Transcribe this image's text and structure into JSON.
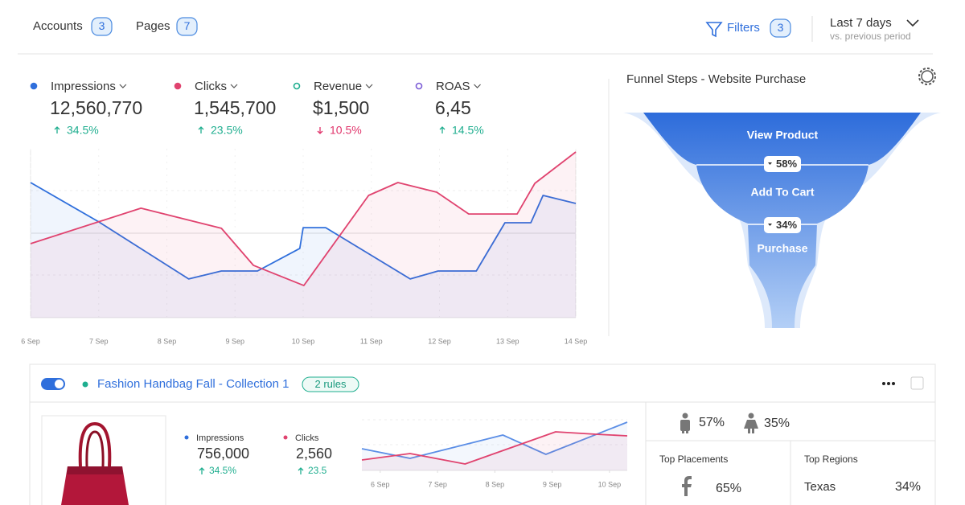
{
  "header": {
    "accounts": {
      "label": "Accounts",
      "count": "3"
    },
    "pages": {
      "label": "Pages",
      "count": "7"
    },
    "filters": {
      "label": "Filters",
      "count": "3"
    },
    "range": {
      "label": "Last 7 days",
      "comparison": "vs. previous period"
    }
  },
  "metrics": [
    {
      "name": "Impressions",
      "value": "12,560,770",
      "change": "34.5%",
      "color": "#2f6fdc",
      "change_color": "#1fae8f"
    },
    {
      "name": "Clicks",
      "value": "1,545,700",
      "change": "23.5%",
      "color": "#e0436f",
      "change_color": "#1fae8f"
    },
    {
      "name": "Revenue",
      "value": "$1,500",
      "change": "10.5%",
      "color": "#1fae8f",
      "change_color": "#e0336a"
    },
    {
      "name": "ROAS",
      "value": "6,45",
      "change": "14.5%",
      "color": "#7b5bd6",
      "change_color": "#1fae8f"
    }
  ],
  "main_chart": {
    "type": "line",
    "xlim": [
      6,
      14
    ],
    "xticks": [
      {
        "value": 6,
        "label": "6 Sep"
      },
      {
        "value": 7,
        "label": "7 Sep"
      },
      {
        "value": 8,
        "label": "8 Sep"
      },
      {
        "value": 9,
        "label": "9 Sep"
      },
      {
        "value": 10,
        "label": "10 Sep"
      },
      {
        "value": 11,
        "label": "11 Sep"
      },
      {
        "value": 12,
        "label": "12 Sep"
      },
      {
        "value": 13,
        "label": "13 Sep"
      },
      {
        "value": 14,
        "label": "14 Sep"
      }
    ],
    "ylim": [
      0,
      100
    ],
    "series": [
      {
        "color": "#2f6fdc",
        "x": [
          6,
          7,
          8.32,
          8.8,
          9.33,
          9.95,
          10,
          10.33,
          11.57,
          11.98,
          12.54,
          12.96,
          13.34,
          13.52,
          14
        ],
        "values": [
          80,
          56.7,
          22.9,
          27.6,
          27.6,
          41,
          53.3,
          53.3,
          22.9,
          27.6,
          27.6,
          56.2,
          56.2,
          72.4,
          67.6
        ]
      },
      {
        "color": "#e0436f",
        "x": [
          6,
          7.62,
          8.8,
          9.27,
          10.01,
          10.96,
          11.39,
          11.96,
          12.43,
          13.14,
          13.4,
          14
        ],
        "values": [
          43.8,
          64.8,
          52.9,
          31,
          19,
          72.4,
          80,
          74.3,
          61.4,
          61.4,
          79.5,
          98.1
        ]
      }
    ]
  },
  "funnel": {
    "title": "Funnel Steps - Website Purchase",
    "steps": [
      "View Product",
      "Add To Cart",
      "Purchase"
    ],
    "rates": [
      "58%",
      "34%"
    ]
  },
  "campaign": {
    "name": "Fashion Handbag Fall - Collection 1",
    "rules": "2 rules",
    "metrics": [
      {
        "name": "Impressions",
        "value": "756,000",
        "change": "34.5%",
        "color": "#2f6fdc"
      },
      {
        "name": "Clicks",
        "value": "2,560",
        "change": "23.5",
        "color": "#e0436f"
      }
    ],
    "chart": {
      "type": "line",
      "xlim": [
        5.68,
        10.31
      ],
      "xticks": [
        {
          "value": 6,
          "label": "6 Sep"
        },
        {
          "value": 7,
          "label": "7 Sep"
        },
        {
          "value": 8,
          "label": "8 Sep"
        },
        {
          "value": 9,
          "label": "9 Sep"
        },
        {
          "value": 10,
          "label": "10 Sep"
        }
      ],
      "ylim": [
        0,
        100
      ],
      "series": [
        {
          "color": "#5b8ee6",
          "x": [
            5.68,
            6.52,
            8.14,
            8.89,
            10.31
          ],
          "values": [
            42.9,
            23.8,
            69.8,
            31.7,
            95.2
          ]
        },
        {
          "color": "#e0436f",
          "x": [
            5.68,
            6.52,
            7.48,
            9.06,
            9.76,
            10.31
          ],
          "values": [
            20.6,
            33.3,
            12.7,
            76.2,
            71.4,
            68.3
          ]
        }
      ]
    },
    "gender": {
      "male": "57%",
      "female": "35%"
    },
    "placements": {
      "title": "Top Placements",
      "value": "65%"
    },
    "regions": {
      "title": "Top Regions",
      "region": "Texas",
      "value": "34%"
    }
  }
}
